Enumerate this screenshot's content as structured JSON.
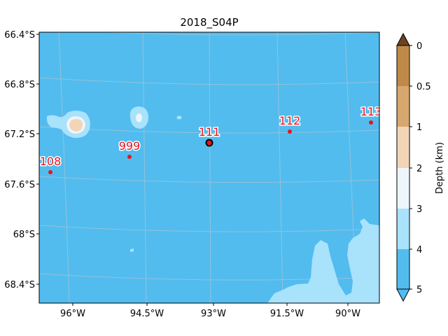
{
  "map": {
    "title": "2018_S04P",
    "lon_ticks": [
      "96°W",
      "94.5°W",
      "93°W",
      "91.5°W",
      "90°W"
    ],
    "lat_ticks": [
      "66.4°S",
      "66.8°S",
      "67.2°S",
      "67.6°S",
      "68°S",
      "68.4°S"
    ],
    "colors": {
      "depth_4_5": "#52bcef",
      "depth_3_4": "#a8e2fb",
      "depth_2_3": "#eef5fb",
      "depth_1_2": "#f2d5b7",
      "depth_05_1": "#d6a86e",
      "depth_0_05": "#bf8a48",
      "extend_over": "#6b4321",
      "extend_under": "#52bcef",
      "station_marker": "#e8141c",
      "current_station_edge": "#000000",
      "label_fill": "#e8141c",
      "label_outline": "#ffffff",
      "grid": "#c8c8c8"
    },
    "stations": [
      {
        "label": "108",
        "current": false
      },
      {
        "label": "999",
        "current": false
      },
      {
        "label": "111",
        "current": true
      },
      {
        "label": "112",
        "current": false
      },
      {
        "label": "113",
        "current": false
      }
    ]
  },
  "colorbar": {
    "label": "Depth (km)",
    "ticks": [
      "0",
      "0.5",
      "1",
      "2",
      "3",
      "4",
      "5"
    ]
  }
}
